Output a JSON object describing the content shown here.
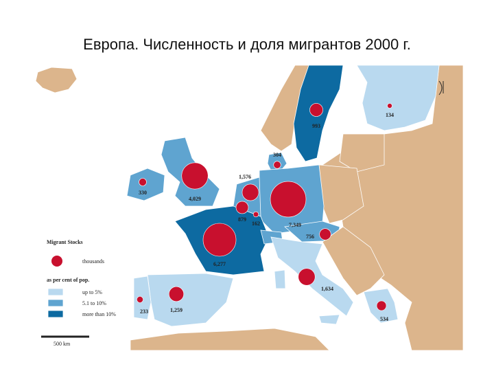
{
  "title": "Европа. Численность и доля мигрантов 2000 г.",
  "markers": [
    {
      "value": 134,
      "label": "134"
    },
    {
      "value": 993,
      "label": "993"
    },
    {
      "value": 304,
      "label": "304"
    },
    {
      "value": 330,
      "label": "330"
    },
    {
      "value": 4029,
      "label": "4,029"
    },
    {
      "value": 1576,
      "label": "1,576"
    },
    {
      "value": 7349,
      "label": "7,349"
    },
    {
      "value": 879,
      "label": "879"
    },
    {
      "value": 162,
      "label": "162"
    },
    {
      "value": 6277,
      "label": "6,277"
    },
    {
      "value": 756,
      "label": "756"
    },
    {
      "value": 1634,
      "label": "1,634"
    },
    {
      "value": 233,
      "label": "233"
    },
    {
      "value": 1259,
      "label": "1,259"
    },
    {
      "value": 534,
      "label": "534"
    }
  ],
  "legend": {
    "title": "Migrant Stocks",
    "circle_label": "thousands",
    "share_title": "as per cent of pop.",
    "classes": [
      "up to 5%",
      "5.1 to 10%",
      "more than 10%"
    ]
  },
  "scale_label": "500 km"
}
